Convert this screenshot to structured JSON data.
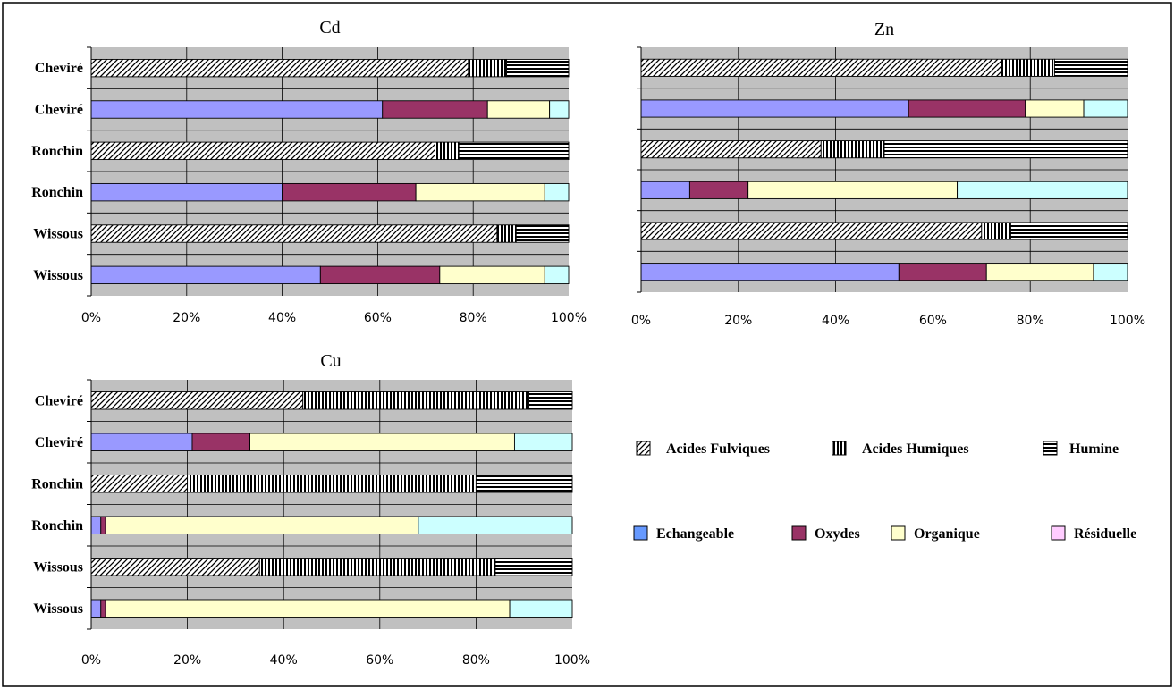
{
  "chart_data": [
    {
      "type": "bar",
      "orientation": "horizontal",
      "stacked": "100%",
      "title": "Cd",
      "categories": [
        "Cheviré",
        "Cheviré",
        "Ronchin",
        "Ronchin",
        "Wissous",
        "Wissous"
      ],
      "x_ticks": [
        "0%",
        "20%",
        "40%",
        "60%",
        "80%",
        "100%"
      ],
      "xlim": [
        0,
        100
      ],
      "grid": true,
      "rows": [
        {
          "category": "Cheviré",
          "kind": "organic",
          "segments": [
            79,
            8,
            13
          ]
        },
        {
          "category": "Cheviré",
          "kind": "sequential",
          "segments": [
            61,
            22,
            13,
            4,
            0
          ]
        },
        {
          "category": "Ronchin",
          "kind": "organic",
          "segments": [
            72,
            5,
            23
          ]
        },
        {
          "category": "Ronchin",
          "kind": "sequential",
          "segments": [
            40,
            28,
            27,
            5,
            0
          ]
        },
        {
          "category": "Wissous",
          "kind": "organic",
          "segments": [
            85,
            4,
            11
          ]
        },
        {
          "category": "Wissous",
          "kind": "sequential",
          "segments": [
            48,
            25,
            22,
            5,
            0
          ]
        }
      ]
    },
    {
      "type": "bar",
      "orientation": "horizontal",
      "stacked": "100%",
      "title": "Zn",
      "categories": [
        "",
        "",
        "",
        "",
        "",
        ""
      ],
      "x_ticks": [
        "0%",
        "20%",
        "40%",
        "60%",
        "80%",
        "100%"
      ],
      "xlim": [
        0,
        100
      ],
      "grid": true,
      "rows": [
        {
          "category": "",
          "kind": "organic",
          "segments": [
            74,
            11,
            15
          ]
        },
        {
          "category": "",
          "kind": "sequential",
          "segments": [
            55,
            24,
            12,
            9,
            0
          ]
        },
        {
          "category": "",
          "kind": "organic",
          "segments": [
            37,
            13,
            50
          ]
        },
        {
          "category": "",
          "kind": "sequential",
          "segments": [
            10,
            12,
            43,
            35,
            0
          ]
        },
        {
          "category": "",
          "kind": "organic",
          "segments": [
            70,
            6,
            24
          ]
        },
        {
          "category": "",
          "kind": "sequential",
          "segments": [
            53,
            18,
            22,
            7,
            0
          ]
        }
      ]
    },
    {
      "type": "bar",
      "orientation": "horizontal",
      "stacked": "100%",
      "title": "Cu",
      "categories": [
        "Cheviré",
        "Cheviré",
        "Ronchin",
        "Ronchin",
        "Wissous",
        "Wissous"
      ],
      "x_ticks": [
        "0%",
        "20%",
        "40%",
        "60%",
        "80%",
        "100%"
      ],
      "xlim": [
        0,
        100
      ],
      "grid": true,
      "rows": [
        {
          "category": "Cheviré",
          "kind": "organic",
          "segments": [
            44,
            47,
            9
          ]
        },
        {
          "category": "Cheviré",
          "kind": "sequential",
          "segments": [
            21,
            12,
            55,
            12,
            0
          ]
        },
        {
          "category": "Ronchin",
          "kind": "organic",
          "segments": [
            20,
            60,
            20
          ]
        },
        {
          "category": "Ronchin",
          "kind": "sequential",
          "segments": [
            2,
            1,
            65,
            32,
            0
          ]
        },
        {
          "category": "Wissous",
          "kind": "organic",
          "segments": [
            35,
            49,
            16
          ]
        },
        {
          "category": "Wissous",
          "kind": "sequential",
          "segments": [
            2,
            1,
            84,
            13,
            0
          ]
        }
      ]
    }
  ],
  "legend": {
    "organic": [
      {
        "name": "Acides Fulviques",
        "pattern": "diagonal"
      },
      {
        "name": "Acides Humiques",
        "pattern": "vertical"
      },
      {
        "name": "Humine",
        "pattern": "horizontal"
      }
    ],
    "sequential": [
      {
        "name": "Echangeable",
        "color": "#9999ff"
      },
      {
        "name": "Oxydes",
        "color": "#993366"
      },
      {
        "name": "Organique",
        "color": "#ffffcc"
      },
      {
        "name": "Résiduelle",
        "color": "#ccffff"
      }
    ],
    "legend_swatch_colors": {
      "Echangeable": "#6699ff",
      "Oxydes": "#993366",
      "Organique": "#ffffcc",
      "Résiduelle": "#ffccff"
    }
  },
  "colors": {
    "plot_bg": "#c0c0c0",
    "grid": "#000000",
    "pattern_bg": "#ffffff",
    "pattern_fg": "#000000"
  }
}
